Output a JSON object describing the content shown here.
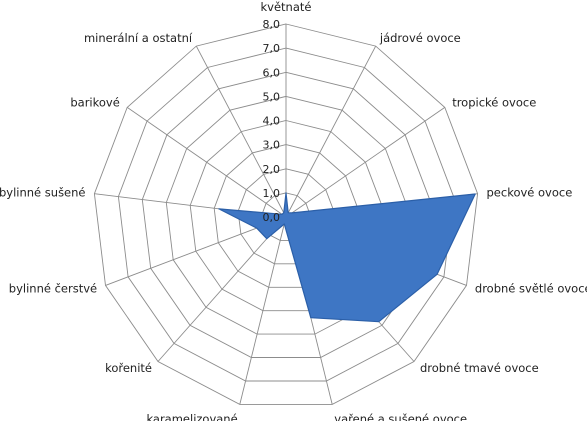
{
  "chart_data": {
    "type": "radar",
    "title": "",
    "categories": [
      "květnaté",
      "jádrové ovoce",
      "tropické ovoce",
      "peckové ovoce",
      "drobné světlé ovoce",
      "drobné tmavé ovoce",
      "vařené a sušené ovoce",
      "karamelizované",
      "kořenité",
      "bylinné čerstvé",
      "bylinné sušené",
      "barikové",
      "minerální a ostatní"
    ],
    "tick_labels": [
      "0,0",
      "1,0",
      "2,0",
      "3,0",
      "4,0",
      "5,0",
      "6,0",
      "7,0",
      "8,0"
    ],
    "rmin": 0,
    "rmax": 8,
    "series": [
      {
        "values": [
          1.0,
          0.2,
          0.3,
          7.9,
          6.7,
          5.8,
          4.3,
          0.3,
          1.2,
          1.3,
          2.8,
          0.2,
          0.2
        ]
      }
    ],
    "fill_color": "#3E76C4",
    "stroke_color": "#2B5FA8",
    "grid": true,
    "grid_color": "#8C8C8C"
  }
}
